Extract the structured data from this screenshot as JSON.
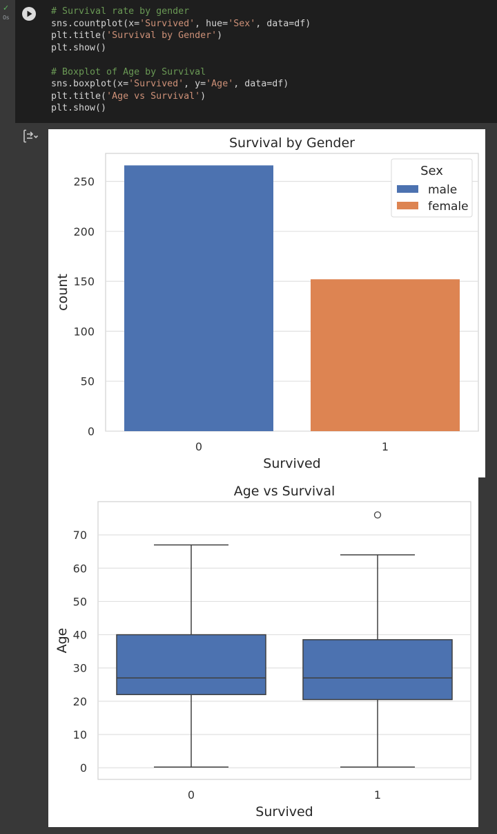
{
  "cell": {
    "status_icon": "check-icon",
    "execution_time": "0s",
    "run_icon": "play-icon",
    "output_toggle_icon": "output-toggle-icon",
    "code_lines": [
      [
        {
          "t": "# Survival rate by gender",
          "k": "comment"
        }
      ],
      [
        {
          "t": "sns.countplot(x=",
          "k": "plain"
        },
        {
          "t": "'Survived'",
          "k": "string"
        },
        {
          "t": ", hue=",
          "k": "plain"
        },
        {
          "t": "'Sex'",
          "k": "string"
        },
        {
          "t": ", data=df)",
          "k": "plain"
        }
      ],
      [
        {
          "t": "plt.title(",
          "k": "plain"
        },
        {
          "t": "'Survival by Gender'",
          "k": "string"
        },
        {
          "t": ")",
          "k": "plain"
        }
      ],
      [
        {
          "t": "plt.show()",
          "k": "plain"
        }
      ],
      [
        {
          "t": "",
          "k": "plain"
        }
      ],
      [
        {
          "t": "# Boxplot of Age by Survival",
          "k": "comment"
        }
      ],
      [
        {
          "t": "sns.boxplot(x=",
          "k": "plain"
        },
        {
          "t": "'Survived'",
          "k": "string"
        },
        {
          "t": ", y=",
          "k": "plain"
        },
        {
          "t": "'Age'",
          "k": "string"
        },
        {
          "t": ", data=df)",
          "k": "plain"
        }
      ],
      [
        {
          "t": "plt.title(",
          "k": "plain"
        },
        {
          "t": "'Age vs Survival'",
          "k": "string"
        },
        {
          "t": ")",
          "k": "plain"
        }
      ],
      [
        {
          "t": "plt.show()",
          "k": "plain"
        }
      ]
    ]
  },
  "chart_data": [
    {
      "type": "bar",
      "title": "Survival by Gender",
      "xlabel": "Survived",
      "ylabel": "count",
      "categories": [
        "0",
        "1"
      ],
      "bars": [
        {
          "category": "0",
          "series": "male",
          "value": 266
        },
        {
          "category": "1",
          "series": "female",
          "value": 152
        }
      ],
      "series": [
        {
          "name": "male",
          "color": "#4c72b0"
        },
        {
          "name": "female",
          "color": "#dd8452"
        }
      ],
      "ylim": [
        0,
        278
      ],
      "yticks": [
        0,
        50,
        100,
        150,
        200,
        250
      ],
      "legend": {
        "title": "Sex",
        "placement": "top-right"
      },
      "grid": true
    },
    {
      "type": "box",
      "title": "Age vs Survival",
      "xlabel": "Survived",
      "ylabel": "Age",
      "categories": [
        "0",
        "1"
      ],
      "boxes": [
        {
          "category": "0",
          "whisker_low": 0.2,
          "q1": 22,
          "median": 27,
          "q3": 40,
          "whisker_high": 67,
          "outliers": []
        },
        {
          "category": "1",
          "whisker_low": 0.2,
          "q1": 20.5,
          "median": 27,
          "q3": 38.5,
          "whisker_high": 64,
          "outliers": [
            76
          ]
        }
      ],
      "box_color": "#4c72b0",
      "ylim": [
        -3.5,
        80
      ],
      "yticks": [
        0,
        10,
        20,
        30,
        40,
        50,
        60,
        70
      ],
      "grid": true
    }
  ]
}
